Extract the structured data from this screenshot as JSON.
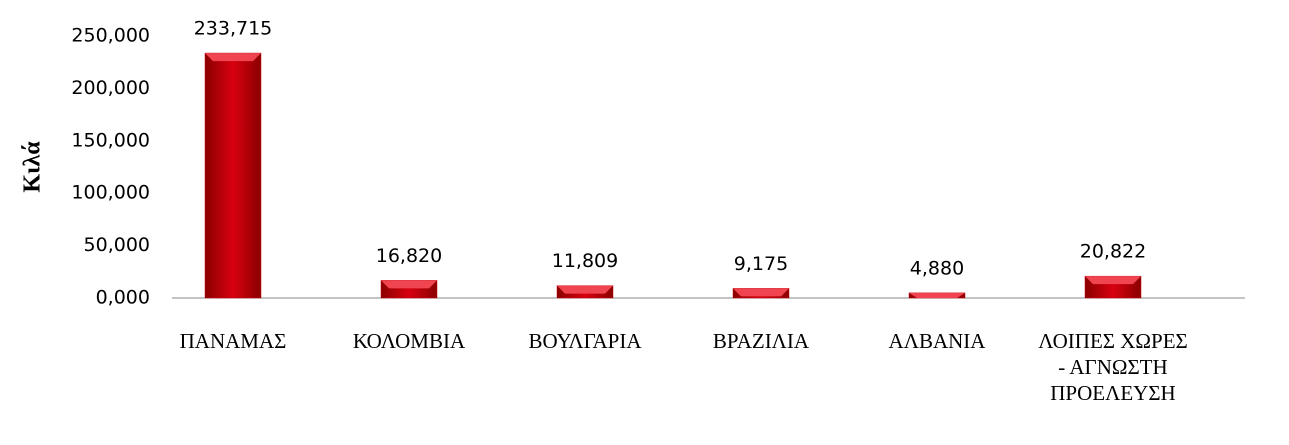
{
  "chart_data": {
    "type": "bar",
    "y_axis_label": "Κιλά",
    "categories": [
      "ΠΑΝΑΜΑΣ",
      "ΚΟΛΟΜΒΙΑ",
      "ΒΟΥΛΓΑΡΙΑ",
      "ΒΡΑΖΙΛΙΑ",
      "ΑΛΒΑΝΙΑ",
      "ΛΟΙΠΕΣ ΧΩΡΕΣ - ΑΓΝΩΣΤΗ ΠΡΟΕΛΕΥΣΗ"
    ],
    "values": [
      233.715,
      16.82,
      11.809,
      9.175,
      4.88,
      20.822
    ],
    "value_labels": [
      "233,715",
      "16,820",
      "11,809",
      "9,175",
      "4,880",
      "20,822"
    ],
    "color": "#c0000d",
    "ylim": [
      0,
      250
    ],
    "yticks": [
      {
        "value": 0,
        "label": "0,000"
      },
      {
        "value": 50,
        "label": "50,000"
      },
      {
        "value": 100,
        "label": "100,000"
      },
      {
        "value": 150,
        "label": "150,000"
      },
      {
        "value": 200,
        "label": "200,000"
      },
      {
        "value": 250,
        "label": "250,000"
      }
    ],
    "grid": false
  }
}
